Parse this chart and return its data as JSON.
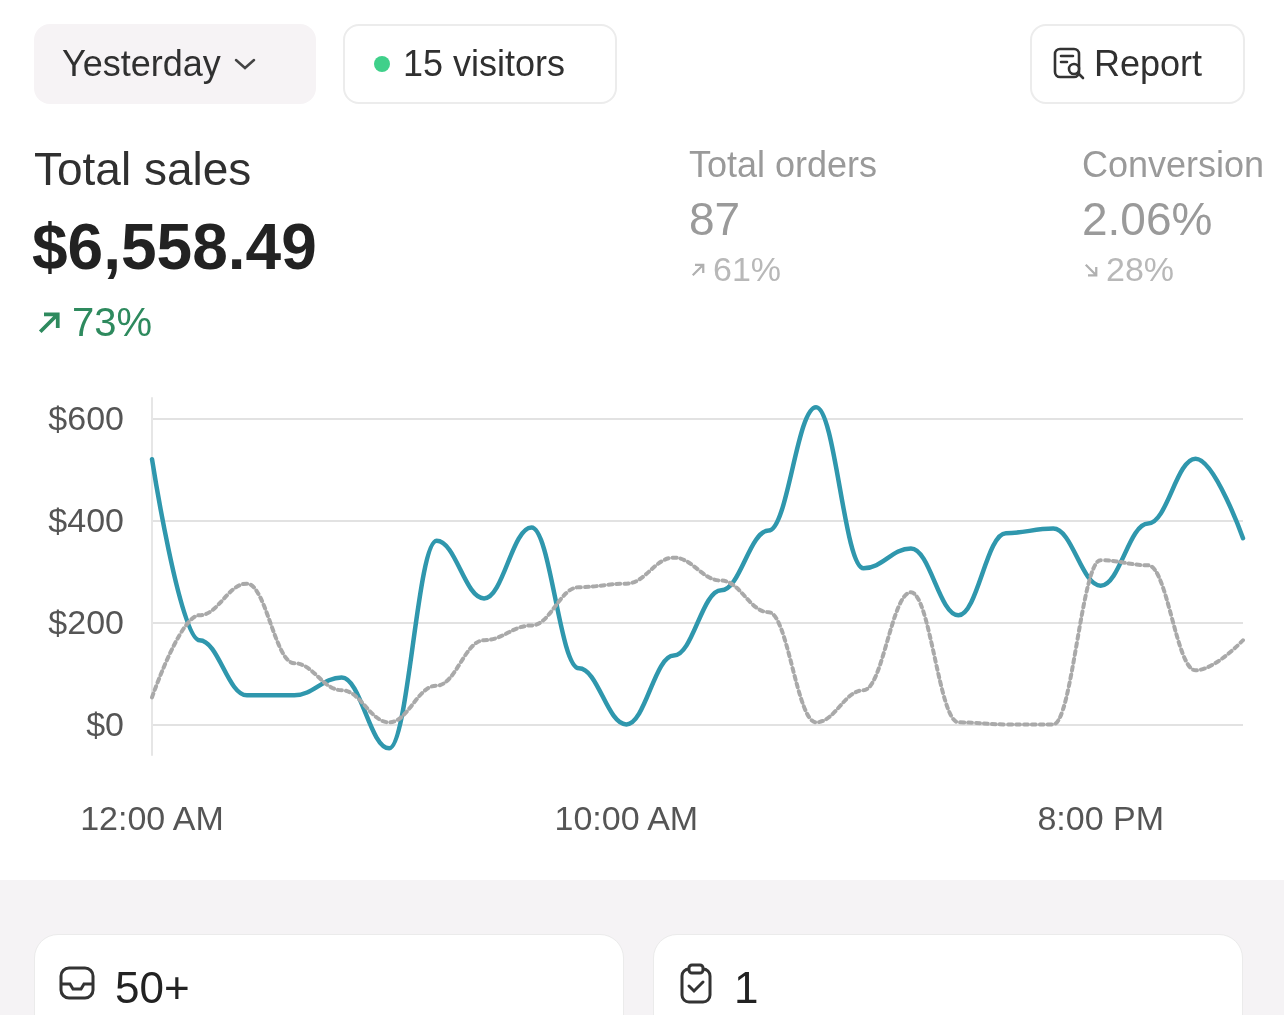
{
  "chart_data": [
    {
      "type": "other",
      "annotations": [
        "Yesterday",
        "15 visitors",
        "Report"
      ]
    },
    {
      "type": "line",
      "title": "Total sales",
      "subtitle": "$6,558.49",
      "annotations": [
        "73%",
        "Total orders",
        "87",
        "61%",
        "Conversion",
        "2.06%",
        "28%"
      ],
      "x": [
        0,
        1,
        2,
        3,
        4,
        5,
        6,
        7,
        8,
        9,
        10,
        11,
        12,
        13,
        14,
        15,
        16,
        17,
        18,
        19,
        20,
        21,
        22,
        23
      ],
      "series": [
        {
          "color": "#2f97ad",
          "line_style": "solid",
          "values": [
            520,
            165,
            57,
            57,
            92,
            -47,
            360,
            247,
            386,
            110,
            0,
            135,
            263,
            380,
            622,
            306,
            345,
            214,
            375,
            384,
            272,
            394,
            521,
            365
          ]
        },
        {
          "color": "#a9a9a9",
          "line_style": "dotted",
          "values": [
            53,
            214,
            276,
            120,
            67,
            4,
            76,
            165,
            194,
            269,
            276,
            327,
            282,
            220,
            4,
            67,
            259,
            4,
            0,
            0,
            322,
            312,
            106,
            165
          ]
        }
      ],
      "xlim": [
        0,
        23
      ],
      "xticks": [
        {
          "value": 0,
          "label": "12:00 AM"
        },
        {
          "value": 10,
          "label": "10:00 AM"
        },
        {
          "value": 20,
          "label": "8:00 PM"
        }
      ],
      "ylim": [
        -60,
        640
      ],
      "yticks": [
        {
          "value": 0,
          "label": "$0"
        },
        {
          "value": 200,
          "label": "$200"
        },
        {
          "value": 400,
          "label": "$400"
        },
        {
          "value": 600,
          "label": "$600"
        }
      ],
      "grid": "y",
      "marker": "none"
    },
    {
      "type": "other",
      "annotations": [
        "50+",
        "1"
      ]
    }
  ]
}
